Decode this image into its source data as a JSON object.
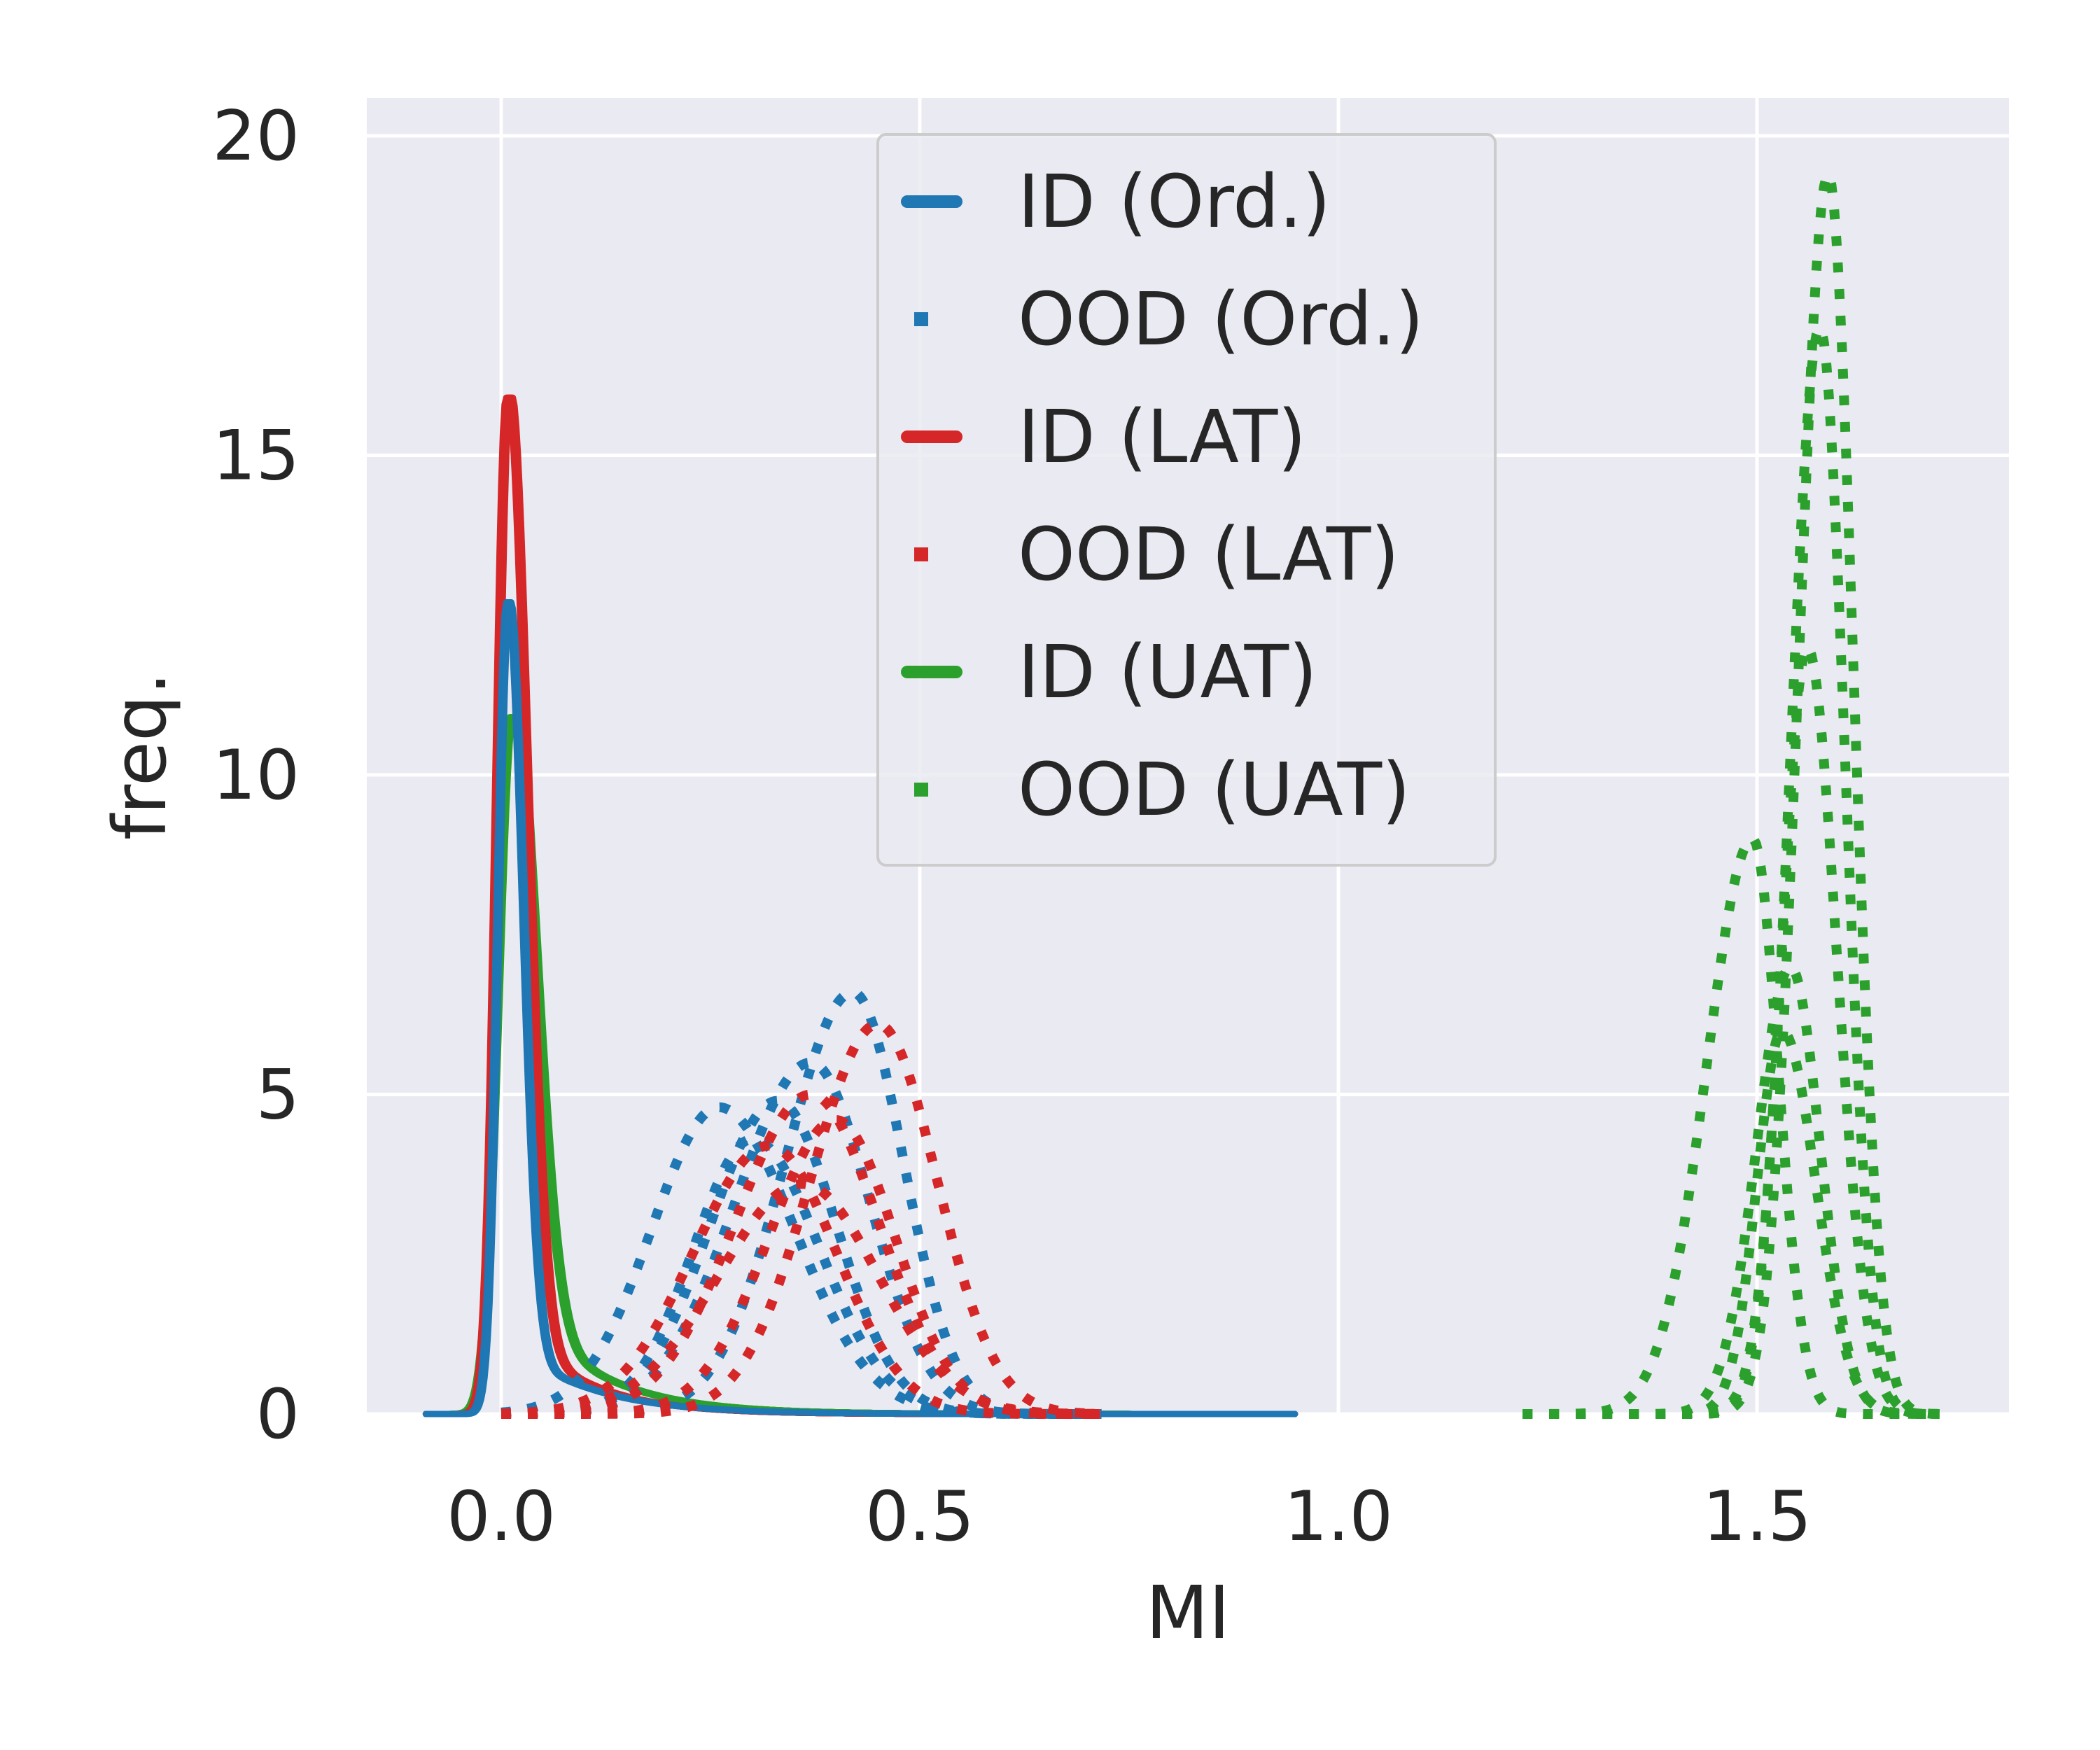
{
  "chart_data": {
    "type": "line",
    "title": "",
    "xlabel": "MI",
    "ylabel": "freq.",
    "xlim": [
      -0.16,
      1.8
    ],
    "ylim": [
      0,
      20.6
    ],
    "x_ticks": [
      0.0,
      0.5,
      1.0,
      1.5
    ],
    "x_tick_labels": [
      "0.0",
      "0.5",
      "1.0",
      "1.5"
    ],
    "y_ticks": [
      0,
      5,
      10,
      15,
      20
    ],
    "y_tick_labels": [
      "0",
      "5",
      "10",
      "15",
      "20"
    ],
    "grid": true,
    "legend_position": "top-center",
    "colors": {
      "blue": "#1f77b4",
      "red": "#d62728",
      "green": "#2ca02c",
      "plot_bg": "#eaeaf2",
      "grid": "#ffffff"
    },
    "series": [
      {
        "name": "ID (Ord.)",
        "color": "#1f77b4",
        "style": "solid",
        "components": [
          {
            "runs": 6,
            "peak": 12.7,
            "mu": 0.008,
            "sd_left": 0.012,
            "sd_right": 0.018,
            "tail_amp": 1.2,
            "tail_decay": 0.09,
            "tail_end": 0.95,
            "shift": 0.004
          }
        ]
      },
      {
        "name": "OOD (Ord.)",
        "color": "#1f77b4",
        "style": "dotted",
        "components": [
          {
            "runs": 1,
            "peak": 6.6,
            "mu": 0.42,
            "sd_left": 0.08,
            "sd_right": 0.06,
            "start": 0.0,
            "end": 0.72
          },
          {
            "runs": 1,
            "peak": 5.5,
            "mu": 0.37,
            "sd_left": 0.09,
            "sd_right": 0.07,
            "start": 0.0,
            "end": 0.72
          },
          {
            "runs": 1,
            "peak": 4.8,
            "mu": 0.26,
            "sd_left": 0.08,
            "sd_right": 0.09,
            "start": 0.0,
            "end": 0.72
          },
          {
            "runs": 1,
            "peak": 4.9,
            "mu": 0.33,
            "sd_left": 0.08,
            "sd_right": 0.07,
            "start": 0.0,
            "end": 0.72
          },
          {
            "runs": 1,
            "peak": 4.3,
            "mu": 0.3,
            "sd_left": 0.07,
            "sd_right": 0.08,
            "start": 0.0,
            "end": 0.72
          }
        ]
      },
      {
        "name": "ID (LAT)",
        "color": "#d62728",
        "style": "solid",
        "components": [
          {
            "runs": 10,
            "peak": 15.9,
            "mu": 0.008,
            "sd_left": 0.013,
            "sd_right": 0.022,
            "tail_amp": 1.6,
            "tail_decay": 0.08,
            "tail_end": 0.95,
            "shift": 0.005
          }
        ]
      },
      {
        "name": "OOD (LAT)",
        "color": "#d62728",
        "style": "dotted",
        "components": [
          {
            "runs": 1,
            "peak": 6.1,
            "mu": 0.45,
            "sd_left": 0.08,
            "sd_right": 0.07,
            "start": 0.0,
            "end": 0.72
          },
          {
            "runs": 1,
            "peak": 5.0,
            "mu": 0.37,
            "sd_left": 0.09,
            "sd_right": 0.08,
            "start": 0.0,
            "end": 0.72
          },
          {
            "runs": 1,
            "peak": 4.6,
            "mu": 0.4,
            "sd_left": 0.08,
            "sd_right": 0.07,
            "start": 0.0,
            "end": 0.72
          },
          {
            "runs": 1,
            "peak": 4.2,
            "mu": 0.32,
            "sd_left": 0.09,
            "sd_right": 0.08,
            "start": 0.0,
            "end": 0.72
          },
          {
            "runs": 1,
            "peak": 3.6,
            "mu": 0.36,
            "sd_left": 0.1,
            "sd_right": 0.09,
            "start": 0.0,
            "end": 0.72
          }
        ]
      },
      {
        "name": "ID (UAT)",
        "color": "#2ca02c",
        "style": "solid",
        "components": [
          {
            "runs": 10,
            "peak": 10.9,
            "mu": 0.012,
            "sd_left": 0.016,
            "sd_right": 0.028,
            "tail_amp": 2.0,
            "tail_decay": 0.09,
            "tail_end": 0.95,
            "shift": 0.005
          }
        ]
      },
      {
        "name": "OOD (UAT)",
        "color": "#2ca02c",
        "style": "dotted",
        "components": [
          {
            "runs": 1,
            "peak": 19.4,
            "mu": 1.585,
            "sd_left": 0.035,
            "sd_right": 0.03,
            "start": 1.22,
            "end": 1.72
          },
          {
            "runs": 1,
            "peak": 17.0,
            "mu": 1.575,
            "sd_left": 0.035,
            "sd_right": 0.03,
            "start": 1.22,
            "end": 1.72
          },
          {
            "runs": 1,
            "peak": 12.0,
            "mu": 1.56,
            "sd_left": 0.03,
            "sd_right": 0.035,
            "start": 1.22,
            "end": 1.72
          },
          {
            "runs": 1,
            "peak": 9.0,
            "mu": 1.495,
            "sd_left": 0.055,
            "sd_right": 0.03,
            "start": 1.22,
            "end": 1.72
          },
          {
            "runs": 1,
            "peak": 7.0,
            "mu": 1.54,
            "sd_left": 0.04,
            "sd_right": 0.035,
            "start": 1.22,
            "end": 1.72
          },
          {
            "runs": 1,
            "peak": 6.0,
            "mu": 1.53,
            "sd_left": 0.03,
            "sd_right": 0.04,
            "start": 1.22,
            "end": 1.72
          }
        ]
      }
    ]
  }
}
